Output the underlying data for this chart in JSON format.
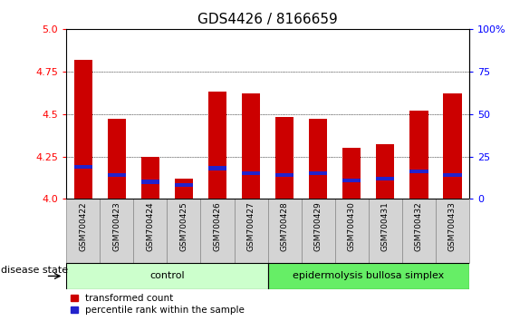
{
  "title": "GDS4426 / 8166659",
  "samples": [
    "GSM700422",
    "GSM700423",
    "GSM700424",
    "GSM700425",
    "GSM700426",
    "GSM700427",
    "GSM700428",
    "GSM700429",
    "GSM700430",
    "GSM700431",
    "GSM700432",
    "GSM700433"
  ],
  "transformed_counts": [
    4.82,
    4.47,
    4.25,
    4.12,
    4.63,
    4.62,
    4.48,
    4.47,
    4.3,
    4.32,
    4.52,
    4.62
  ],
  "percentile_bottoms": [
    4.18,
    4.13,
    4.09,
    4.07,
    4.17,
    4.14,
    4.13,
    4.14,
    4.1,
    4.11,
    4.15,
    4.13
  ],
  "percentile_heights": [
    0.022,
    0.022,
    0.022,
    0.022,
    0.022,
    0.022,
    0.022,
    0.022,
    0.022,
    0.022,
    0.022,
    0.022
  ],
  "ylim": [
    4.0,
    5.0
  ],
  "yticks_left": [
    4.0,
    4.25,
    4.5,
    4.75,
    5.0
  ],
  "yticks_right": [
    0,
    25,
    50,
    75,
    100
  ],
  "bar_color": "#CC0000",
  "percentile_color": "#2222CC",
  "bar_width": 0.55,
  "groups": [
    {
      "label": "control",
      "start": 0,
      "end": 6,
      "color": "#ccffcc"
    },
    {
      "label": "epidermolysis bullosa simplex",
      "start": 6,
      "end": 12,
      "color": "#66ee66"
    }
  ],
  "disease_state_label": "disease state",
  "legend_items": [
    {
      "label": "transformed count",
      "color": "#CC0000"
    },
    {
      "label": "percentile rank within the sample",
      "color": "#2222CC"
    }
  ],
  "cell_bg": "#d4d4d4",
  "cell_border": "#888888",
  "title_fontsize": 11,
  "tick_fontsize": 8,
  "label_fontsize": 8
}
